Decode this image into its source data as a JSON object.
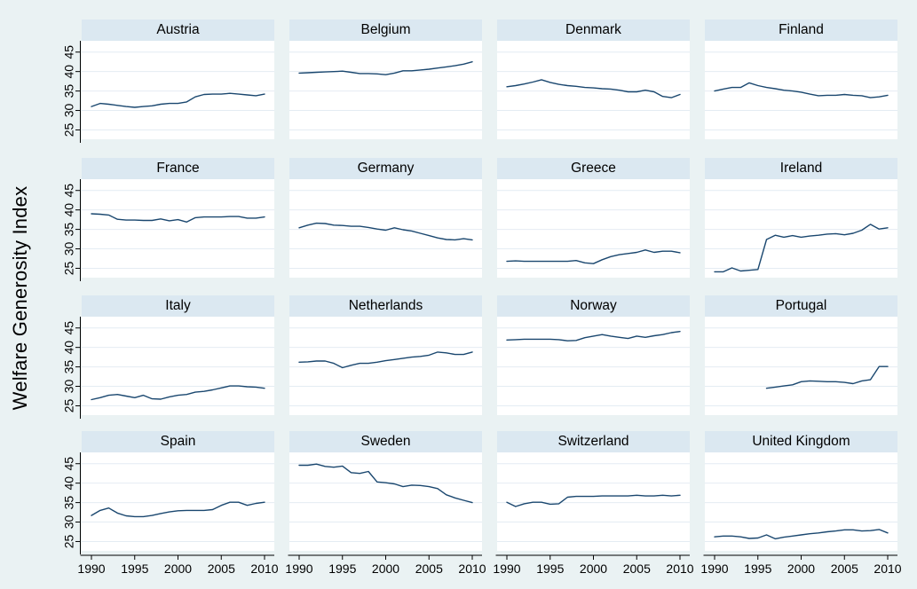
{
  "chart_data": {
    "type": "line",
    "title": "",
    "ylabel": "Welfare Generosity Index",
    "xlabel": "",
    "x_years": [
      1990,
      1991,
      1992,
      1993,
      1994,
      1995,
      1996,
      1997,
      1998,
      1999,
      2000,
      2001,
      2002,
      2003,
      2004,
      2005,
      2006,
      2007,
      2008,
      2009,
      2010
    ],
    "x_ticks": [
      1990,
      1995,
      2000,
      2005,
      2010
    ],
    "y_ticks": [
      25,
      30,
      35,
      40,
      45
    ],
    "xlim": [
      1988.9,
      2011.1
    ],
    "ylim": [
      22.6,
      47.9
    ],
    "grid": "horizontal",
    "legend": "none",
    "layout": {
      "rows": 4,
      "cols": 4,
      "shared_y_axis_per_row": true,
      "shared_x_axis_bottom_row": true
    },
    "colors": {
      "background": "#eaf2f3",
      "strip_bg": "#dbe8f1",
      "plot_bg": "#ffffff",
      "grid": "#e4ecf3",
      "line": "#1a476f",
      "axis": "#000000",
      "text": "#000000"
    },
    "series": [
      {
        "name": "Austria",
        "x_start": 1990,
        "values": [
          31.0,
          31.8,
          31.6,
          31.3,
          31.0,
          30.8,
          31.0,
          31.2,
          31.6,
          31.8,
          31.8,
          32.2,
          33.5,
          34.1,
          34.2,
          34.2,
          34.4,
          34.2,
          34.0,
          33.8,
          34.2
        ]
      },
      {
        "name": "Belgium",
        "x_start": 1990,
        "values": [
          39.6,
          39.7,
          39.8,
          39.9,
          40.0,
          40.1,
          39.8,
          39.5,
          39.5,
          39.4,
          39.2,
          39.6,
          40.2,
          40.2,
          40.4,
          40.6,
          40.9,
          41.2,
          41.5,
          41.9,
          42.5
        ]
      },
      {
        "name": "Denmark",
        "x_start": 1990,
        "values": [
          36.1,
          36.4,
          36.8,
          37.3,
          37.9,
          37.2,
          36.7,
          36.4,
          36.2,
          35.9,
          35.8,
          35.6,
          35.5,
          35.2,
          34.8,
          34.8,
          35.2,
          34.8,
          33.6,
          33.3,
          34.1
        ]
      },
      {
        "name": "Finland",
        "x_start": 1990,
        "values": [
          35.0,
          35.5,
          35.9,
          35.9,
          37.1,
          36.4,
          35.9,
          35.6,
          35.2,
          35.0,
          34.7,
          34.2,
          33.8,
          33.9,
          33.9,
          34.1,
          33.9,
          33.8,
          33.3,
          33.5,
          33.9
        ]
      },
      {
        "name": "France",
        "x_start": 1990,
        "values": [
          39.0,
          38.9,
          38.7,
          37.6,
          37.4,
          37.4,
          37.3,
          37.3,
          37.7,
          37.2,
          37.5,
          36.9,
          38.0,
          38.2,
          38.2,
          38.2,
          38.3,
          38.3,
          37.9,
          37.9,
          38.2
        ]
      },
      {
        "name": "Germany",
        "x_start": 1990,
        "values": [
          35.4,
          36.1,
          36.6,
          36.5,
          36.1,
          36.0,
          35.8,
          35.8,
          35.5,
          35.1,
          34.8,
          35.4,
          34.9,
          34.6,
          34.0,
          33.4,
          32.8,
          32.4,
          32.3,
          32.6,
          32.3
        ]
      },
      {
        "name": "Greece",
        "x_start": 1990,
        "values": [
          26.8,
          26.9,
          26.8,
          26.8,
          26.8,
          26.8,
          26.8,
          26.8,
          27.0,
          26.4,
          26.2,
          27.2,
          28.0,
          28.5,
          28.8,
          29.1,
          29.7,
          29.1,
          29.4,
          29.4,
          29.0
        ]
      },
      {
        "name": "Ireland",
        "x_start": 1990,
        "values": [
          24.1,
          24.1,
          25.1,
          24.3,
          24.5,
          24.7,
          32.4,
          33.5,
          33.0,
          33.4,
          33.0,
          33.3,
          33.5,
          33.8,
          33.9,
          33.6,
          34.0,
          34.8,
          36.3,
          35.1,
          35.4
        ]
      },
      {
        "name": "Italy",
        "x_start": 1990,
        "values": [
          26.6,
          27.1,
          27.7,
          27.9,
          27.5,
          27.1,
          27.7,
          26.8,
          26.7,
          27.3,
          27.7,
          27.9,
          28.5,
          28.7,
          29.1,
          29.6,
          30.1,
          30.1,
          29.9,
          29.8,
          29.5
        ]
      },
      {
        "name": "Netherlands",
        "x_start": 1990,
        "values": [
          36.2,
          36.3,
          36.5,
          36.5,
          35.9,
          34.8,
          35.4,
          35.9,
          35.9,
          36.2,
          36.6,
          36.9,
          37.2,
          37.5,
          37.7,
          38.0,
          38.8,
          38.6,
          38.2,
          38.2,
          38.8
        ]
      },
      {
        "name": "Norway",
        "x_start": 1990,
        "values": [
          41.9,
          42.0,
          42.1,
          42.1,
          42.1,
          42.1,
          42.0,
          41.7,
          41.8,
          42.5,
          42.9,
          43.3,
          42.9,
          42.6,
          42.3,
          42.9,
          42.6,
          43.0,
          43.3,
          43.8,
          44.1
        ]
      },
      {
        "name": "Portugal",
        "x_start": 1996,
        "values": [
          29.5,
          29.8,
          30.1,
          30.4,
          31.2,
          31.4,
          31.3,
          31.2,
          31.2,
          31.0,
          30.7,
          31.4,
          31.7,
          35.1,
          35.1
        ]
      },
      {
        "name": "Spain",
        "x_start": 1990,
        "values": [
          31.7,
          33.0,
          33.6,
          32.3,
          31.6,
          31.4,
          31.4,
          31.7,
          32.2,
          32.6,
          32.9,
          33.0,
          33.0,
          33.0,
          33.2,
          34.3,
          35.1,
          35.1,
          34.3,
          34.8,
          35.1
        ]
      },
      {
        "name": "Sweden",
        "x_start": 1990,
        "values": [
          44.6,
          44.6,
          44.9,
          44.3,
          44.1,
          44.4,
          42.7,
          42.5,
          43.0,
          40.3,
          40.1,
          39.8,
          39.1,
          39.5,
          39.4,
          39.1,
          38.6,
          37.0,
          36.2,
          35.6,
          35.0
        ]
      },
      {
        "name": "Switzerland",
        "x_start": 1990,
        "values": [
          35.1,
          34.0,
          34.7,
          35.1,
          35.1,
          34.6,
          34.7,
          36.4,
          36.6,
          36.6,
          36.6,
          36.7,
          36.7,
          36.7,
          36.7,
          36.9,
          36.7,
          36.7,
          36.9,
          36.7,
          36.9
        ]
      },
      {
        "name": "United Kingdom",
        "x_start": 1990,
        "values": [
          26.2,
          26.4,
          26.4,
          26.2,
          25.8,
          25.9,
          26.7,
          25.7,
          26.1,
          26.4,
          26.7,
          27.0,
          27.2,
          27.5,
          27.7,
          28.0,
          28.0,
          27.7,
          27.8,
          28.1,
          27.2
        ]
      }
    ]
  }
}
